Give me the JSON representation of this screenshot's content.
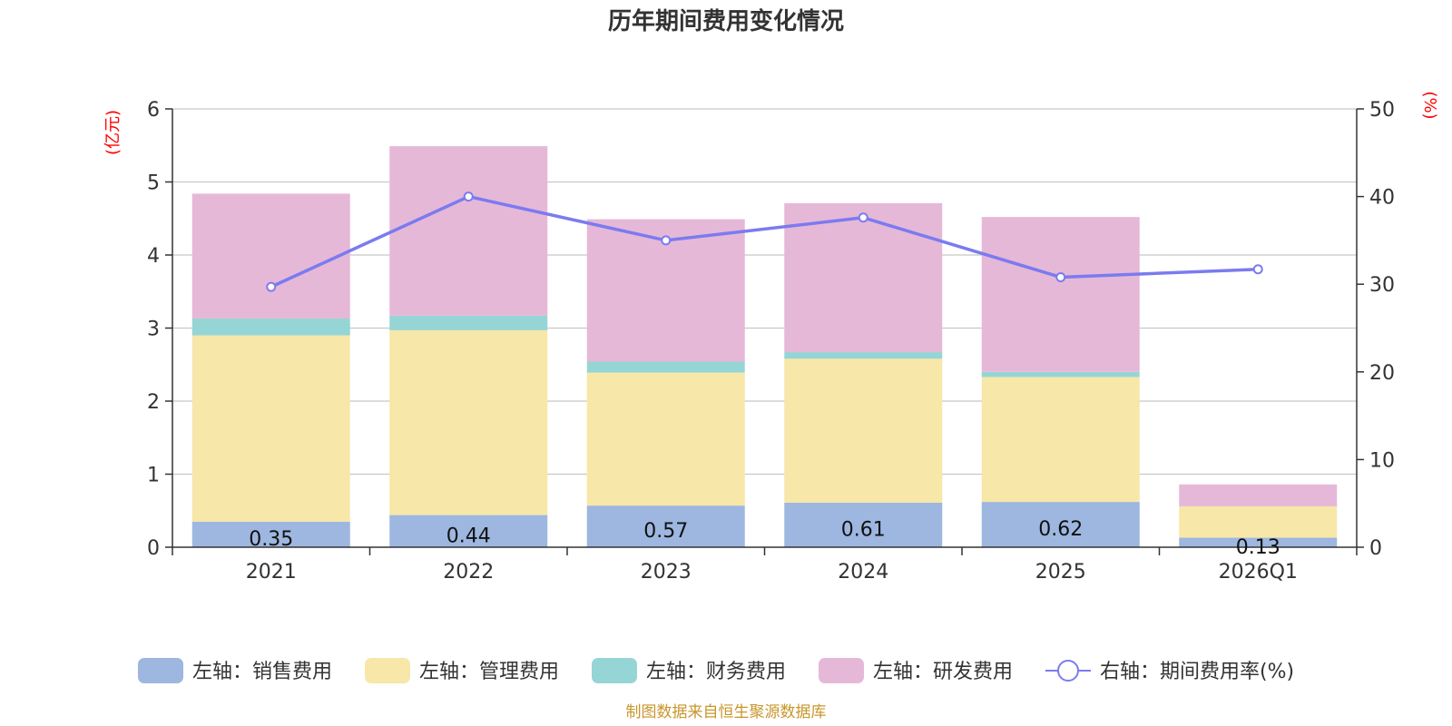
{
  "chart_data": {
    "type": "bar",
    "stacked": true,
    "title": "历年期间费用变化情况",
    "categories": [
      "2021",
      "2022",
      "2023",
      "2024",
      "2025",
      "2026Q1"
    ],
    "y_left": {
      "unit": "(亿元)",
      "ylim": [
        0,
        6
      ],
      "ticks": [
        "0",
        "1",
        "2",
        "3",
        "4",
        "5",
        "6"
      ]
    },
    "y_right": {
      "unit": "(%)",
      "ylim": [
        0,
        50
      ],
      "ticks": [
        "0",
        "10",
        "20",
        "30",
        "40",
        "50"
      ]
    },
    "series": [
      {
        "name": "左轴：销售费用",
        "axis": "left",
        "color": "#9db7e0",
        "values": [
          0.35,
          0.44,
          0.57,
          0.61,
          0.62,
          0.13
        ],
        "labels": [
          "0.35",
          "0.44",
          "0.57",
          "0.61",
          "0.62",
          "0.13"
        ]
      },
      {
        "name": "左轴：管理费用",
        "axis": "left",
        "color": "#f7e7a8",
        "values": [
          2.55,
          2.53,
          1.82,
          1.97,
          1.71,
          0.43
        ]
      },
      {
        "name": "左轴：财务费用",
        "axis": "left",
        "color": "#96d5d5",
        "values": [
          0.23,
          0.2,
          0.15,
          0.09,
          0.07,
          0.0
        ]
      },
      {
        "name": "左轴：研发费用",
        "axis": "left",
        "color": "#e6b8d8",
        "values": [
          1.71,
          2.32,
          1.95,
          2.04,
          2.12,
          0.3
        ]
      },
      {
        "name": "右轴：期间费用率(%)",
        "axis": "right",
        "type": "line",
        "color": "#7b7bef",
        "values": [
          29.7,
          40.0,
          35.0,
          37.6,
          30.8,
          31.7
        ]
      }
    ],
    "legend_position": "bottom",
    "grid": true
  },
  "footer": {
    "source": "制图数据来自恒生聚源数据库"
  }
}
